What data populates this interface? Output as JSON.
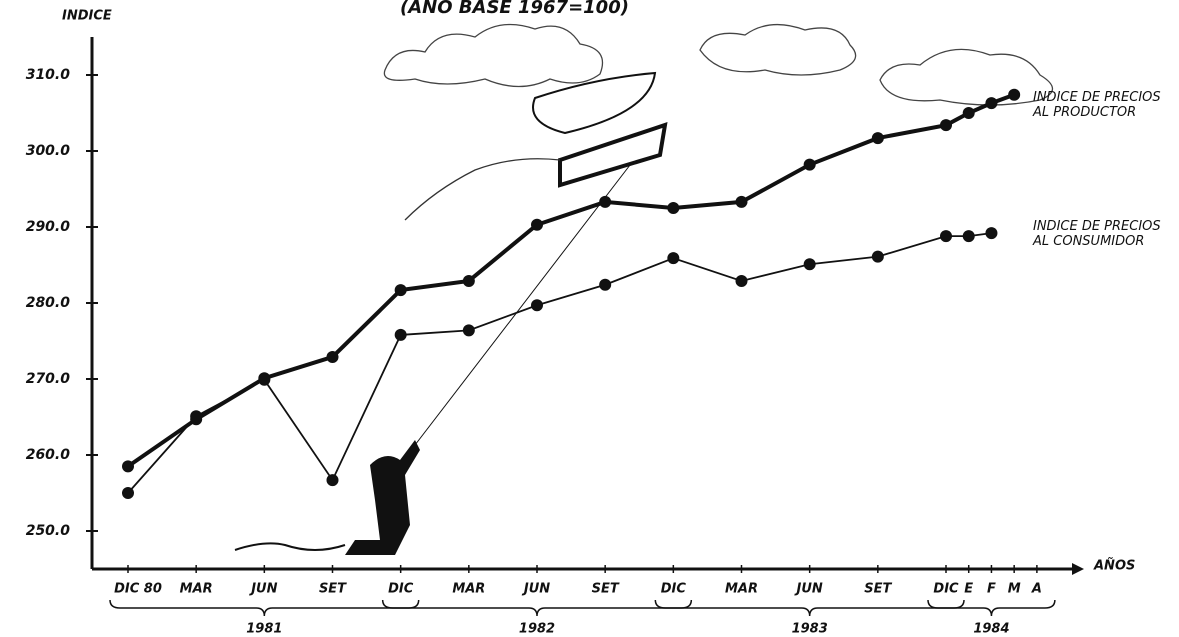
{
  "chart_data": {
    "type": "line",
    "title": "(AÑO BASE 1967=100)",
    "y_label": "INDICE",
    "x_label": "AÑOS",
    "categories": [
      "DIC 80",
      "MAR",
      "JUN",
      "SET",
      "DIC",
      "MAR",
      "JUN",
      "SET",
      "DIC",
      "MAR",
      "JUN",
      "SET",
      "DIC",
      "E",
      "F",
      "M",
      "A"
    ],
    "year_groups": [
      "1981",
      "1982",
      "1983",
      "1984"
    ],
    "series": [
      {
        "name": "INDICE DE PRECIOS AL PRODUCTOR",
        "color": "#111111",
        "values": [
          258.5,
          264.7,
          270.1,
          272.9,
          281.7,
          282.9,
          290.3,
          293.3,
          292.5,
          293.3,
          298.2,
          301.7,
          303.4,
          305.0,
          306.3,
          307.4,
          null
        ]
      },
      {
        "name": "INDICE DE PRECIOS AL CONSUMIDOR",
        "color": "#111111",
        "values": [
          255.0,
          265.1,
          269.9,
          256.7,
          275.8,
          276.4,
          279.7,
          282.4,
          285.9,
          282.9,
          285.1,
          286.1,
          288.8,
          288.8,
          289.2,
          null,
          null
        ]
      }
    ],
    "ylim": [
      245,
      315
    ],
    "yticks": [
      {
        "value": 250,
        "label": "250.0"
      },
      {
        "value": 260,
        "label": "260.0"
      },
      {
        "value": 270,
        "label": "270.0"
      },
      {
        "value": 280,
        "label": "280.0"
      },
      {
        "value": 290,
        "label": "290.0"
      },
      {
        "value": 300,
        "label": "300.0"
      },
      {
        "value": 310,
        "label": "310.0"
      }
    ]
  }
}
